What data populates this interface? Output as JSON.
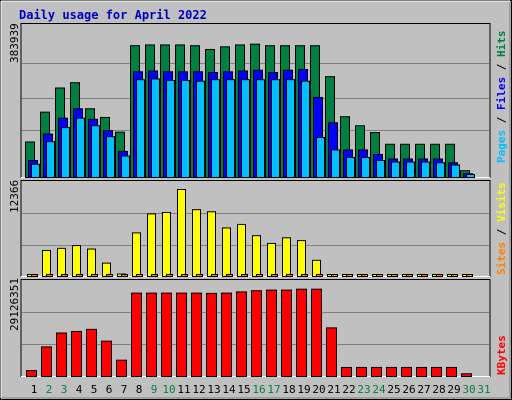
{
  "chart_data": [
    {
      "type": "bar",
      "title": "Daily usage for April 2022",
      "panel": "hits",
      "scale_label": "383939",
      "ylim": [
        0,
        383939
      ],
      "categories": [
        "1",
        "2",
        "3",
        "4",
        "5",
        "6",
        "7",
        "8",
        "9",
        "10",
        "11",
        "12",
        "13",
        "14",
        "15",
        "16",
        "17",
        "18",
        "19",
        "20",
        "21",
        "22",
        "23",
        "24",
        "25",
        "26",
        "27",
        "28",
        "29",
        "30",
        "31"
      ],
      "series": [
        {
          "name": "Hits",
          "color": "#008040",
          "values": [
            94000,
            173000,
            237000,
            251000,
            182000,
            159000,
            120000,
            349000,
            351000,
            351000,
            351000,
            349000,
            339000,
            346000,
            351000,
            353000,
            349000,
            349000,
            349000,
            349000,
            267000,
            161000,
            137000,
            119000,
            88000,
            88000,
            88000,
            88000,
            88000,
            18000,
            0
          ]
        },
        {
          "name": "Files",
          "color": "#0000ff",
          "values": [
            45000,
            115000,
            157000,
            182000,
            154000,
            124000,
            69000,
            280000,
            282000,
            280000,
            280000,
            280000,
            278000,
            280000,
            282000,
            284000,
            278000,
            284000,
            286000,
            212000,
            145000,
            73000,
            73000,
            61000,
            49000,
            49000,
            49000,
            49000,
            39000,
            10000,
            0
          ]
        },
        {
          "name": "Pages",
          "color": "#00c0ff",
          "values": [
            35000,
            95000,
            132000,
            157000,
            137000,
            108000,
            57000,
            259000,
            261000,
            257000,
            257000,
            255000,
            259000,
            259000,
            259000,
            259000,
            259000,
            259000,
            255000,
            106000,
            73000,
            53000,
            53000,
            45000,
            41000,
            41000,
            41000,
            39000,
            33000,
            8000,
            0
          ]
        }
      ],
      "legend_labels": [
        "Pages",
        "Files",
        "Hits"
      ]
    },
    {
      "type": "bar",
      "panel": "visits",
      "scale_label": "12366",
      "ylim": [
        0,
        12366
      ],
      "categories": [
        "1",
        "2",
        "3",
        "4",
        "5",
        "6",
        "7",
        "8",
        "9",
        "10",
        "11",
        "12",
        "13",
        "14",
        "15",
        "16",
        "17",
        "18",
        "19",
        "20",
        "21",
        "22",
        "23",
        "24",
        "25",
        "26",
        "27",
        "28",
        "29",
        "30",
        "31"
      ],
      "series": [
        {
          "name": "Visits",
          "color": "#ffff00",
          "values": [
            290,
            3700,
            4000,
            4400,
            3900,
            1900,
            350,
            6200,
            8900,
            9100,
            12366,
            9500,
            9200,
            6900,
            7400,
            5800,
            4700,
            5500,
            5100,
            2300,
            150,
            250,
            250,
            250,
            250,
            290,
            290,
            290,
            290,
            120,
            0
          ]
        },
        {
          "name": "Sites",
          "color": "#ff8000",
          "values": [
            150,
            150,
            150,
            150,
            150,
            120,
            100,
            180,
            180,
            180,
            190,
            180,
            180,
            160,
            170,
            160,
            150,
            160,
            150,
            120,
            90,
            90,
            90,
            90,
            90,
            100,
            100,
            100,
            100,
            50,
            0
          ]
        }
      ],
      "legend_labels": [
        "Sites",
        "Visits"
      ]
    },
    {
      "type": "bar",
      "panel": "kbytes",
      "scale_label": "29126351",
      "ylim": [
        0,
        29126351
      ],
      "categories": [
        "1",
        "2",
        "3",
        "4",
        "5",
        "6",
        "7",
        "8",
        "9",
        "10",
        "11",
        "12",
        "13",
        "14",
        "15",
        "16",
        "17",
        "18",
        "19",
        "20",
        "21",
        "22",
        "23",
        "24",
        "25",
        "26",
        "27",
        "28",
        "29",
        "30",
        "31"
      ],
      "series": [
        {
          "name": "KBytes",
          "color": "#ff0000",
          "values": [
            1950000,
            9800000,
            14400000,
            14900000,
            15600000,
            11700000,
            5400000,
            27600000,
            27600000,
            27600000,
            27600000,
            27600000,
            27500000,
            27600000,
            28000000,
            28400000,
            28600000,
            28600000,
            28900000,
            28900000,
            16100000,
            3000000,
            3000000,
            3000000,
            3000000,
            3000000,
            3000000,
            3000000,
            3000000,
            900000,
            0
          ]
        }
      ],
      "legend_labels": [
        "KBytes"
      ]
    }
  ],
  "weekend_days": [
    2,
    3,
    9,
    10,
    16,
    17,
    23,
    24,
    30,
    31
  ],
  "colors": {
    "background": "#c0c0c0",
    "title": "#0000c0",
    "weekday_label": "#000000",
    "weekend_label": "#008040",
    "gridline": "#808080",
    "bar_outline": "#000000",
    "legend_sep": "#000000"
  }
}
